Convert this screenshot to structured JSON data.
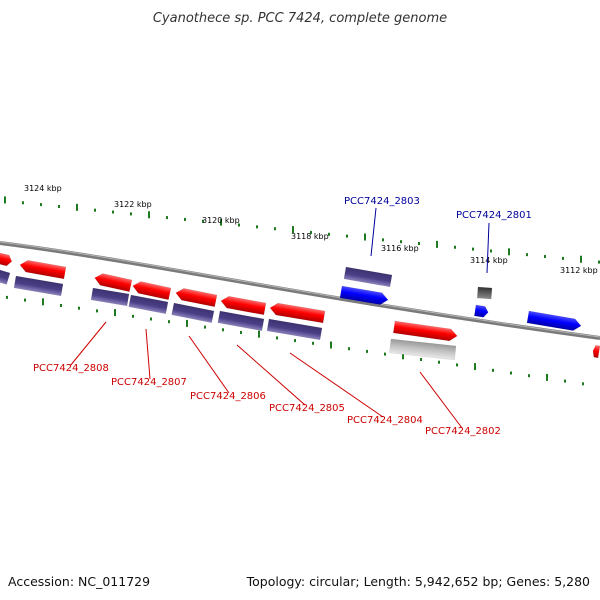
{
  "title": "Cyanothece sp. PCC 7424, complete genome",
  "accession": "Accession: NC_011729",
  "summary": "Topology: circular; Length: 5,942,652 bp; Genes: 5,280",
  "colors": {
    "backbone": "#7a7a7a",
    "tick": "#1e7a1e",
    "gene_red": "#ff0000",
    "gene_blue": "#0000ff",
    "cds_purple": "#5a4f96",
    "label_red": "#cc0000",
    "label_blue": "#000099",
    "rna_gray": "#bbbbbb",
    "small_dark": "#555555"
  },
  "scale_labels": [
    "3124 kbp",
    "3122 kbp",
    "3120 kbp",
    "3118 kbp",
    "3116 kbp",
    "3114 kbp",
    "3112 kbp"
  ],
  "gene_labels": [
    {
      "text": "PCC7424_2808",
      "color": "red"
    },
    {
      "text": "PCC7424_2807",
      "color": "red"
    },
    {
      "text": "PCC7424_2806",
      "color": "red"
    },
    {
      "text": "PCC7424_2805",
      "color": "red"
    },
    {
      "text": "PCC7424_2804",
      "color": "red"
    },
    {
      "text": "PCC7424_2803",
      "color": "blue"
    },
    {
      "text": "PCC7424_2802",
      "color": "red"
    },
    {
      "text": "PCC7424_2801",
      "color": "blue"
    }
  ]
}
